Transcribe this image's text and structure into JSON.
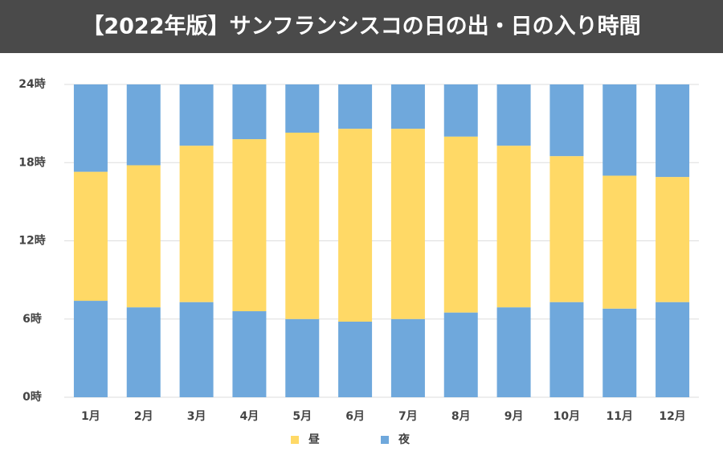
{
  "chart_data": {
    "type": "stacked_bar",
    "title": "【2022年版】サンフランシスコの日の出・日の入り時間",
    "categories": [
      "1月",
      "2月",
      "3月",
      "4月",
      "5月",
      "6月",
      "7月",
      "8月",
      "9月",
      "10月",
      "11月",
      "12月"
    ],
    "series": [
      {
        "name": "夜",
        "color": "#6fa8dc",
        "values": [
          7.4,
          6.9,
          7.3,
          6.6,
          6.0,
          5.8,
          6.0,
          6.5,
          6.9,
          7.3,
          6.8,
          7.3
        ]
      },
      {
        "name": "昼",
        "color": "#ffd966",
        "values": [
          9.9,
          10.9,
          12.0,
          13.2,
          14.3,
          14.8,
          14.6,
          13.5,
          12.4,
          11.2,
          10.2,
          9.6
        ]
      },
      {
        "name": "夜",
        "color": "#6fa8dc",
        "values": [
          6.7,
          6.2,
          4.7,
          4.2,
          3.7,
          3.4,
          3.4,
          4.0,
          4.7,
          5.5,
          7.0,
          7.1
        ]
      }
    ],
    "ylim": [
      0,
      24
    ],
    "yticks": [
      {
        "value": 0,
        "label": "0時"
      },
      {
        "value": 6,
        "label": "6時"
      },
      {
        "value": 12,
        "label": "12時"
      },
      {
        "value": 18,
        "label": "18時"
      },
      {
        "value": 24,
        "label": "24時"
      }
    ],
    "grid": true,
    "legend": "bottom"
  }
}
